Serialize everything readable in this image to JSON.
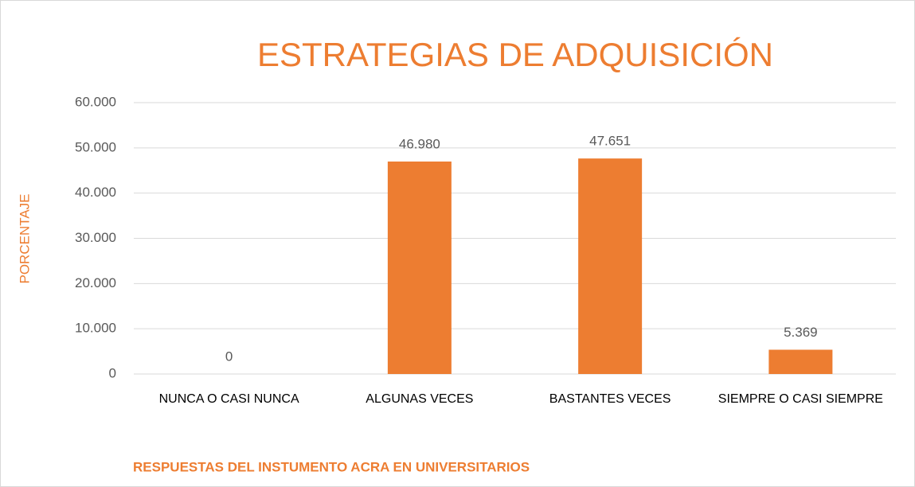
{
  "chart_data": {
    "type": "bar",
    "title": "ESTRATEGIAS DE ADQUISICIÓN",
    "y_label": "PORCENTAJE",
    "x_label": "RESPUESTAS DEL INSTUMENTO ACRA EN UNIVERSITARIOS",
    "categories": [
      "NUNCA O CASI NUNCA",
      "ALGUNAS VECES",
      "BASTANTES VECES",
      "SIEMPRE O CASI SIEMPRE"
    ],
    "values": [
      0,
      46.98,
      47.651,
      5.369
    ],
    "value_labels": [
      "0",
      "46.980",
      "47.651",
      "5.369"
    ],
    "color": "#ed7d31",
    "ylim": [
      0,
      60
    ],
    "yticks": [
      0,
      {
        "value": 10,
        "label": "10.000"
      },
      {
        "value": 20,
        "label": "20.000"
      },
      {
        "value": 30,
        "label": "30.000"
      },
      {
        "value": 40,
        "label": "40.000"
      },
      {
        "value": 50,
        "label": "50.000"
      },
      {
        "value": 60,
        "label": "60.000"
      }
    ],
    "grid": true
  }
}
